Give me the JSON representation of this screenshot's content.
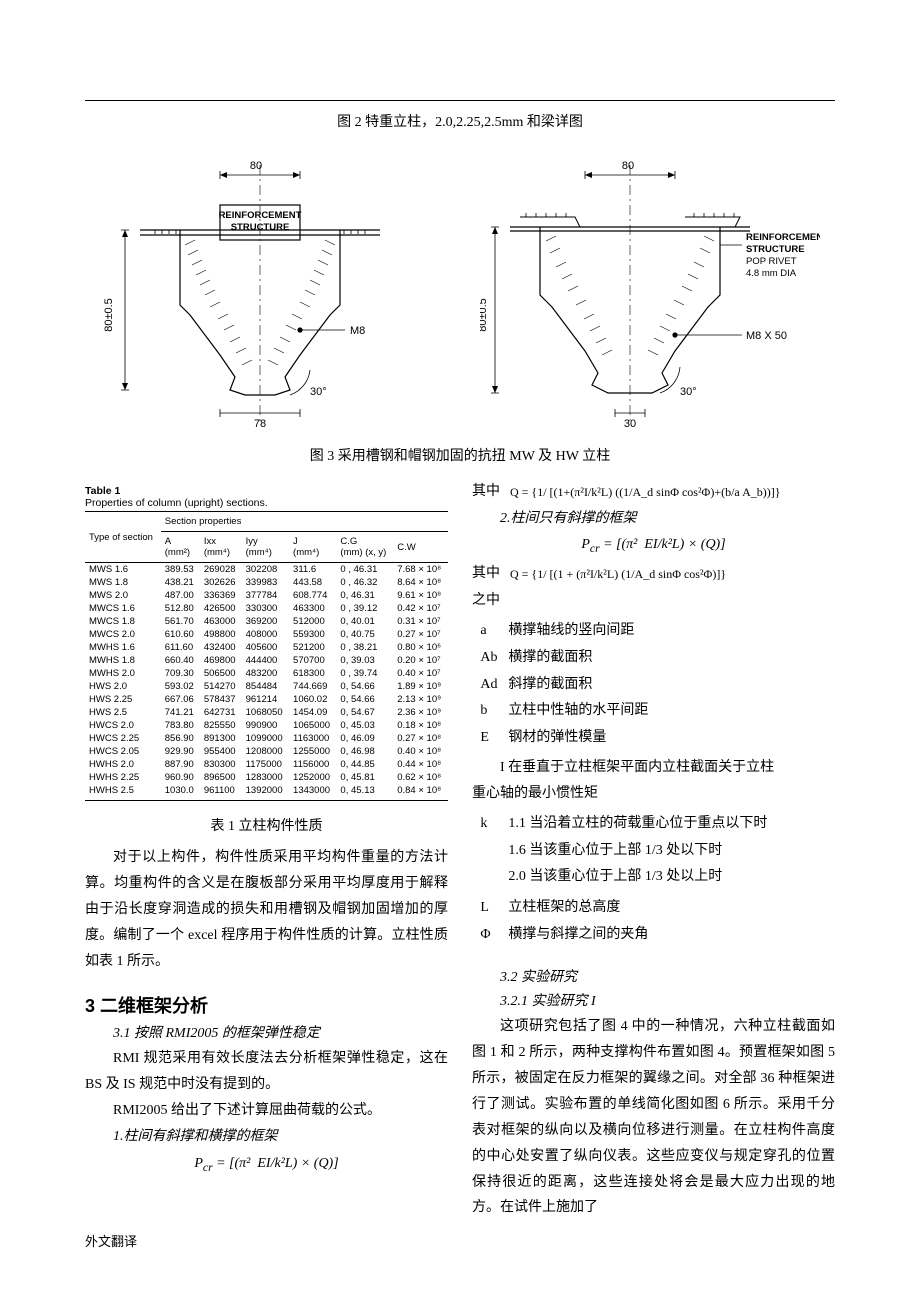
{
  "captions": {
    "fig2": "图 2 特重立柱，2.0,2.25,2.5mm 和梁详图",
    "fig3": "图 3  采用槽钢和帽钢加固的抗扭 MW 及 HW 立柱",
    "table1_cn": "表 1 立柱构件性质"
  },
  "figure3_left": {
    "dim_top": "80",
    "dim_left": "80±0.5",
    "text1": "REINFORCEMENT",
    "text2": "STRUCTURE",
    "angle": "30°",
    "bolt": "M8",
    "dim_mid": "78"
  },
  "figure3_right": {
    "dim_top": "80",
    "dim_left": "80±0.5",
    "text1": "REINFORCEMENT",
    "text2": "STRUCTURE",
    "text3": "POP RIVET",
    "text4": "4.8 mm DIA",
    "angle": "30°",
    "bolt": "M8 X 50",
    "dim_mid": "30"
  },
  "table1": {
    "title_bold": "Table 1",
    "title_sub": "Properties of column (upright) sections.",
    "head_group1": "Type of section",
    "head_group2": "Section properties",
    "cols": [
      "A (mm²)",
      "Ixx (mm⁴)",
      "Iyy (mm⁴)",
      "J (mm⁴)",
      "C.G (mm) (x, y)",
      "C.W"
    ],
    "rows": [
      [
        "MWS 1.6",
        "389.53",
        "269028",
        "302208",
        "311.6",
        "0 , 46.31",
        "7.68 × 10⁸"
      ],
      [
        "MWS 1.8",
        "438.21",
        "302626",
        "339983",
        "443.58",
        "0 , 46.32",
        "8.64 × 10⁸"
      ],
      [
        "MWS 2.0",
        "487.00",
        "336369",
        "377784",
        "608.774",
        "0, 46.31",
        "9.61 × 10⁸"
      ],
      [
        "MWCS 1.6",
        "512.80",
        "426500",
        "330300",
        "463300",
        "0 , 39.12",
        "0.42 × 10⁷"
      ],
      [
        "MWCS 1.8",
        "561.70",
        "463000",
        "369200",
        "512000",
        "0, 40.01",
        "0.31 × 10⁷"
      ],
      [
        "MWCS 2.0",
        "610.60",
        "498800",
        "408000",
        "559300",
        "0, 40.75",
        "0.27 × 10⁷"
      ],
      [
        "MWHS 1.6",
        "611.60",
        "432400",
        "405600",
        "521200",
        "0 , 38.21",
        "0.80 × 10⁶"
      ],
      [
        "MWHS 1.8",
        "660.40",
        "469800",
        "444400",
        "570700",
        "0, 39.03",
        "0.20 × 10⁷"
      ],
      [
        "MWHS 2.0",
        "709.30",
        "506500",
        "483200",
        "618300",
        "0 , 39.74",
        "0.40 × 10⁷"
      ],
      [
        "HWS 2.0",
        "593.02",
        "514270",
        "854484",
        "744.669",
        "0, 54.66",
        "1.89 × 10⁹"
      ],
      [
        "HWS 2.25",
        "667.06",
        "578437",
        "961214",
        "1060.02",
        "0, 54.66",
        "2.13 × 10⁹"
      ],
      [
        "HWS 2.5",
        "741.21",
        "642731",
        "1068050",
        "1454.09",
        "0, 54.67",
        "2.36 × 10⁹"
      ],
      [
        "HWCS 2.0",
        "783.80",
        "825550",
        "990900",
        "1065000",
        "0, 45.03",
        "0.18 × 10⁸"
      ],
      [
        "HWCS 2.25",
        "856.90",
        "891300",
        "1099000",
        "1163000",
        "0, 46.09",
        "0.27 × 10⁸"
      ],
      [
        "HWCS 2.05",
        "929.90",
        "955400",
        "1208000",
        "1255000",
        "0, 46.98",
        "0.40 × 10⁸"
      ],
      [
        "HWHS 2.0",
        "887.90",
        "830300",
        "1175000",
        "1156000",
        "0, 44.85",
        "0.44 × 10⁸"
      ],
      [
        "HWHS 2.25",
        "960.90",
        "896500",
        "1283000",
        "1252000",
        "0, 45.81",
        "0.62 × 10⁸"
      ],
      [
        "HWHS 2.5",
        "1030.0",
        "961100",
        "1392000",
        "1343000",
        "0, 45.13",
        "0.84 × 10⁸"
      ]
    ]
  },
  "left_body": {
    "para1": "对于以上构件，构件性质采用平均构件重量的方法计算。均重构件的含义是在腹板部分采用平均厚度用于解释由于沿长度穿洞造成的损失和用槽钢及帽钢加固增加的厚度。编制了一个 excel 程序用于构件性质的计算。立柱性质如表 1 所示。",
    "sec3": "3   二维框架分析",
    "sub31": "3.1 按照 RMI2005 的框架弹性稳定",
    "para31a": "RMI 规范采用有效长度法去分析框架弹性稳定，这在 BS 及 IS 规范中时没有提到的。",
    "para31b": "RMI2005 给出了下述计算屈曲荷载的公式。",
    "case1": "1.柱间有斜撑和横撑的框架",
    "formula1": "P_cr = [(π²  EI/k²L) × (Q)]"
  },
  "right_body": {
    "where": "其中",
    "Q1": "Q = {1/ [(1+(π²I/k²L) ((1/A_d sinΦ cos²Φ)+(b/a A_b))]}",
    "case2": "2.柱间只有斜撑的框架",
    "formula2": "P_cr = [(π²  EI/k²L) × (Q)]",
    "Q2": "Q = {1/ [(1 + (π²I/k²L) (1/A_d sinΦ cos²Φ)]}",
    "zhizhong": "之中",
    "defs": [
      [
        "a",
        "横撑轴线的竖向间距"
      ],
      [
        "Ab",
        "横撑的截面积"
      ],
      [
        "Ad",
        "斜撑的截面积"
      ],
      [
        "b",
        "立柱中性轴的水平间距"
      ],
      [
        "E",
        "钢材的弹性模量"
      ]
    ],
    "I_def_line1": "I      在垂直于立柱框架平面内立柱截面关于立柱",
    "I_def_line2": "重心轴的最小惯性矩",
    "k_rows": [
      [
        "k",
        "1.1 当沿着立柱的荷载重心位于重点以下时"
      ],
      [
        "",
        "1.6 当该重心位于上部 1/3 处以下时"
      ],
      [
        "",
        "2.0 当该重心位于上部 1/3 处以上时"
      ]
    ],
    "more_defs": [
      [
        "L",
        "立柱框架的总高度"
      ],
      [
        "Φ",
        "横撑与斜撑之间的夹角"
      ]
    ],
    "sub32": "3.2  实验研究",
    "sub321": "3.2.1 实验研究 I",
    "para321": "这项研究包括了图 4 中的一种情况，六种立柱截面如图 1 和 2 所示，两种支撑构件布置如图 4。预置框架如图 5 所示，被固定在反力框架的翼缘之间。对全部 36 种框架进行了测试。实验布置的单线简化图如图 6 所示。采用千分表对框架的纵向以及横向位移进行测量。在立柱构件高度的中心处安置了纵向仪表。这些应变仪与规定穿孔的位置保持很近的距离，这些连接处将会是最大应力出现的地方。在试件上施加了"
  },
  "footer": "外文翻译"
}
